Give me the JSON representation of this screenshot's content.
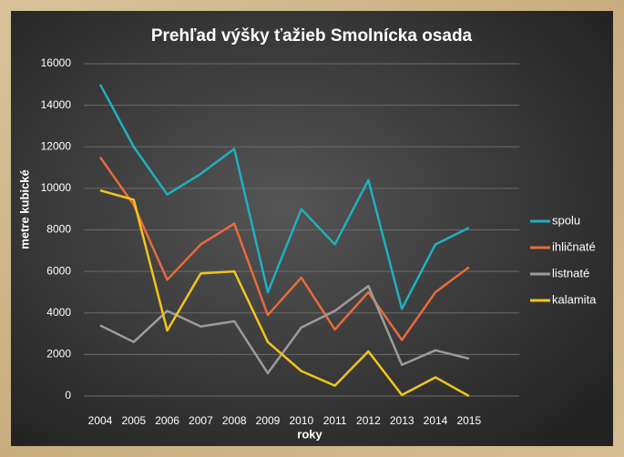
{
  "chart_data": {
    "type": "line",
    "title": "Prehľad výšky ťažieb Smolnícka osada",
    "x_label": "roky",
    "y_label": "metre kubické",
    "categories": [
      "2004",
      "2005",
      "2006",
      "2007",
      "2008",
      "2009",
      "2010",
      "2011",
      "2012",
      "2013",
      "2014",
      "2015"
    ],
    "series": [
      {
        "name": "spolu",
        "color": "#1fb0c0",
        "values": [
          15000,
          12000,
          9700,
          10700,
          11900,
          5000,
          9000,
          7300,
          10400,
          4200,
          7300,
          8100
        ]
      },
      {
        "name": "ihličnaté",
        "color": "#ea6a3c",
        "values": [
          11500,
          9200,
          5600,
          7300,
          8300,
          3900,
          5700,
          3200,
          5000,
          2700,
          5000,
          6200
        ]
      },
      {
        "name": "listnaté",
        "color": "#9c9c9c",
        "values": [
          3400,
          2600,
          4100,
          3350,
          3600,
          1100,
          3300,
          4100,
          5300,
          1500,
          2200,
          1800
        ]
      },
      {
        "name": "kalamita",
        "color": "#f2c51a",
        "values": [
          9900,
          9450,
          3150,
          5900,
          6000,
          2600,
          1200,
          500,
          2150,
          50,
          900,
          0
        ]
      }
    ],
    "ylim": [
      0,
      16000
    ],
    "yticks": [
      0,
      2000,
      4000,
      6000,
      8000,
      10000,
      12000,
      14000,
      16000
    ],
    "grid": true,
    "legend": "right"
  }
}
